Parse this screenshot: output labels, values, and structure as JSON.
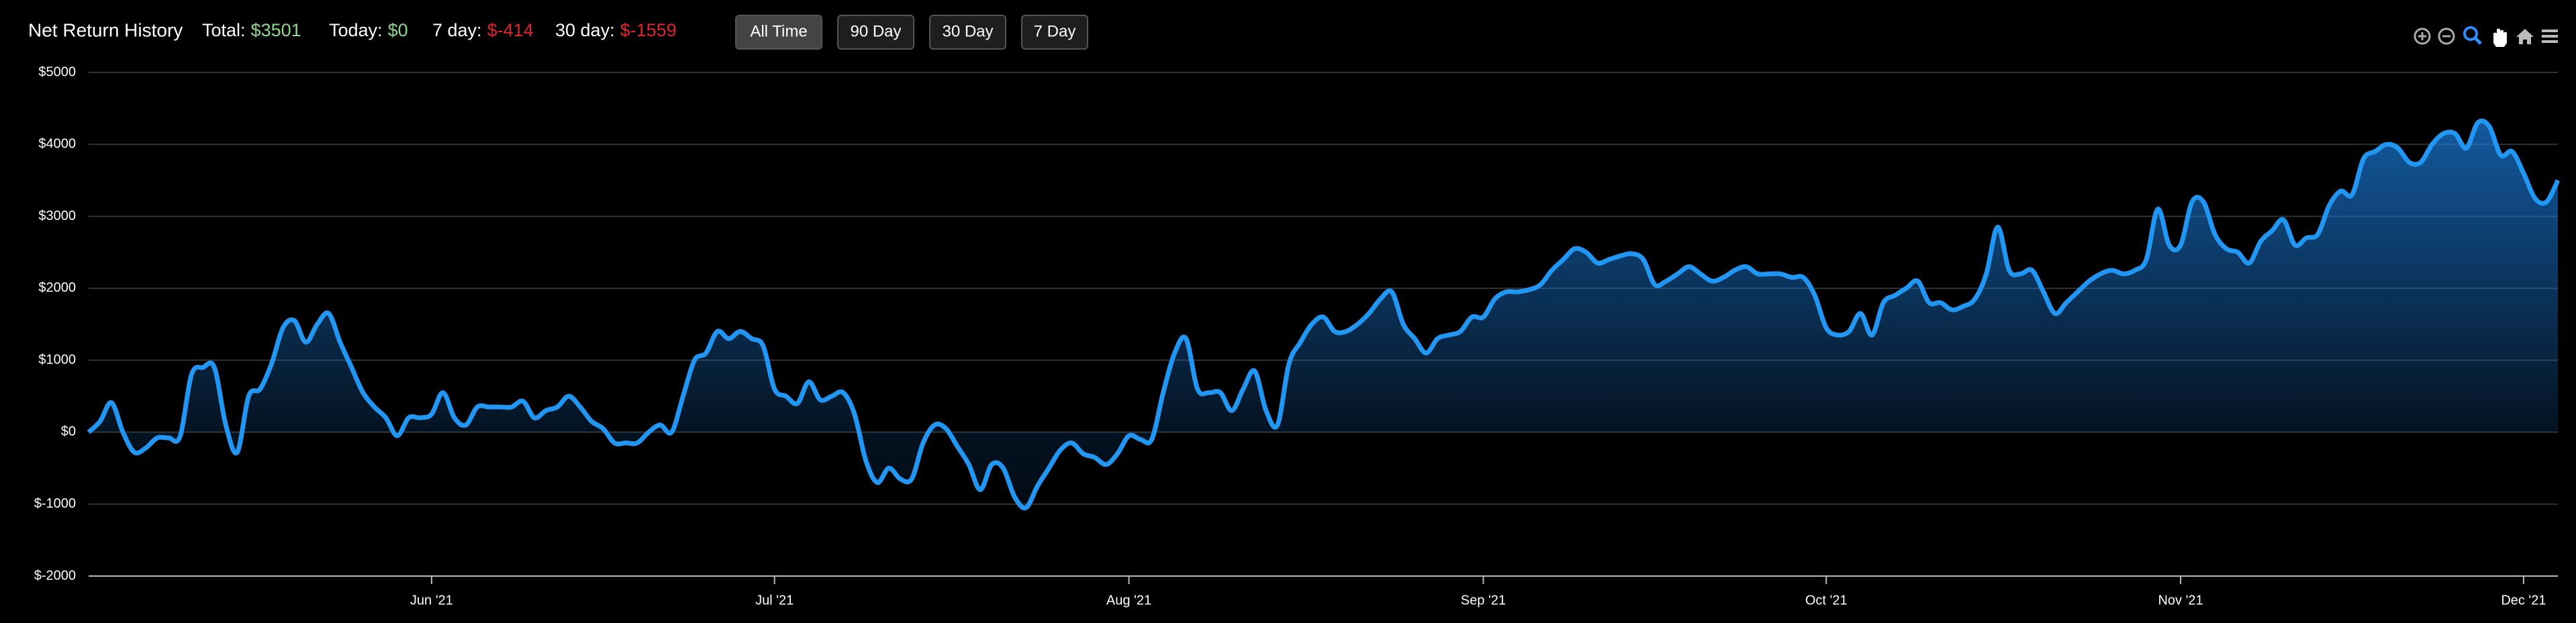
{
  "header": {
    "title": "Net Return History",
    "stats": [
      {
        "label": "Total:",
        "value": "$3501",
        "color": "#8fd68f"
      },
      {
        "label": "Today:",
        "value": "$0",
        "color": "#8fd68f"
      },
      {
        "label": "7 day:",
        "value": "$-414",
        "color": "#e0242b"
      },
      {
        "label": "30 day:",
        "value": "$-1559",
        "color": "#e0242b"
      }
    ],
    "buttons": [
      "All Time",
      "90 Day",
      "30 Day",
      "7 Day"
    ]
  },
  "chart_data": {
    "type": "area",
    "categories": [
      null,
      null,
      null,
      null,
      null,
      null,
      null,
      null,
      null,
      null,
      null,
      null,
      null,
      null,
      null,
      null,
      null,
      null,
      null,
      null,
      null,
      null,
      null,
      null,
      null,
      null,
      null,
      null,
      null,
      null,
      "Jun '21",
      null,
      null,
      null,
      null,
      null,
      null,
      null,
      null,
      null,
      null,
      null,
      null,
      null,
      null,
      null,
      null,
      null,
      null,
      null,
      null,
      null,
      null,
      null,
      null,
      null,
      null,
      null,
      null,
      null,
      "Jul '21",
      null,
      null,
      null,
      null,
      null,
      null,
      null,
      null,
      null,
      null,
      null,
      null,
      null,
      null,
      null,
      null,
      null,
      null,
      null,
      null,
      null,
      null,
      null,
      null,
      null,
      null,
      null,
      null,
      null,
      null,
      "Aug '21",
      null,
      null,
      null,
      null,
      null,
      null,
      null,
      null,
      null,
      null,
      null,
      null,
      null,
      null,
      null,
      null,
      null,
      null,
      null,
      null,
      null,
      null,
      null,
      null,
      null,
      null,
      null,
      null,
      null,
      null,
      "Sep '21",
      null,
      null,
      null,
      null,
      null,
      null,
      null,
      null,
      null,
      null,
      null,
      null,
      null,
      null,
      null,
      null,
      null,
      null,
      null,
      null,
      null,
      null,
      null,
      null,
      null,
      null,
      null,
      null,
      null,
      "Oct '21",
      null,
      null,
      null,
      null,
      null,
      null,
      null,
      null,
      null,
      null,
      null,
      null,
      null,
      null,
      null,
      null,
      null,
      null,
      null,
      null,
      null,
      null,
      null,
      null,
      null,
      null,
      null,
      null,
      null,
      null,
      "Nov '21",
      null,
      null,
      null,
      null,
      null,
      null,
      null,
      null,
      null,
      null,
      null,
      null,
      null,
      null,
      null,
      null,
      null,
      null,
      null,
      null,
      null,
      null,
      null,
      null,
      null,
      null,
      null,
      null,
      null,
      "Dec '21",
      null,
      null,
      null
    ],
    "values": [
      0,
      150,
      410,
      0,
      -280,
      -220,
      -80,
      -80,
      -60,
      800,
      900,
      900,
      100,
      -280,
      500,
      600,
      950,
      1450,
      1550,
      1250,
      1500,
      1650,
      1250,
      900,
      550,
      350,
      200,
      -50,
      200,
      200,
      250,
      550,
      200,
      100,
      350,
      350,
      350,
      350,
      430,
      200,
      300,
      350,
      500,
      350,
      150,
      50,
      -150,
      -150,
      -150,
      0,
      100,
      0,
      500,
      1000,
      1100,
      1400,
      1300,
      1400,
      1300,
      1200,
      600,
      500,
      400,
      700,
      450,
      500,
      550,
      250,
      -400,
      -700,
      -500,
      -650,
      -650,
      -150,
      100,
      50,
      -200,
      -450,
      -800,
      -450,
      -500,
      -900,
      -1050,
      -750,
      -500,
      -250,
      -150,
      -300,
      -350,
      -450,
      -300,
      -50,
      -100,
      -100,
      550,
      1100,
      1300,
      600,
      550,
      550,
      300,
      600,
      850,
      300,
      100,
      950,
      1250,
      1500,
      1600,
      1400,
      1400,
      1500,
      1650,
      1850,
      1950,
      1500,
      1300,
      1100,
      1300,
      1350,
      1400,
      1600,
      1600,
      1850,
      1950,
      1950,
      1980,
      2050,
      2250,
      2400,
      2550,
      2500,
      2350,
      2400,
      2450,
      2480,
      2400,
      2050,
      2100,
      2200,
      2300,
      2200,
      2100,
      2150,
      2250,
      2300,
      2200,
      2200,
      2200,
      2150,
      2150,
      1900,
      1450,
      1350,
      1400,
      1650,
      1350,
      1800,
      1900,
      2000,
      2100,
      1800,
      1800,
      1700,
      1750,
      1850,
      2200,
      2850,
      2250,
      2200,
      2250,
      1950,
      1650,
      1800,
      1950,
      2100,
      2200,
      2250,
      2200,
      2250,
      2400,
      3100,
      2600,
      2600,
      3200,
      3200,
      2750,
      2550,
      2500,
      2350,
      2650,
      2800,
      2950,
      2600,
      2700,
      2750,
      3150,
      3350,
      3300,
      3800,
      3900,
      4000,
      3950,
      3750,
      3750,
      4000,
      4150,
      4150,
      3950,
      4300,
      4250,
      3850,
      3900,
      3600,
      3250,
      3200,
      3501
    ],
    "color": "#2196f3",
    "ylim": [
      -2000,
      5000
    ],
    "yticks": [
      {
        "value": -2000,
        "label": "$-2000"
      },
      {
        "value": -1000,
        "label": "$-1000"
      },
      {
        "value": 0,
        "label": "$0"
      },
      {
        "value": 1000,
        "label": "$1000"
      },
      {
        "value": 2000,
        "label": "$2000"
      },
      {
        "value": 3000,
        "label": "$3000"
      },
      {
        "value": 4000,
        "label": "$4000"
      },
      {
        "value": 5000,
        "label": "$5000"
      }
    ],
    "grid": true
  }
}
